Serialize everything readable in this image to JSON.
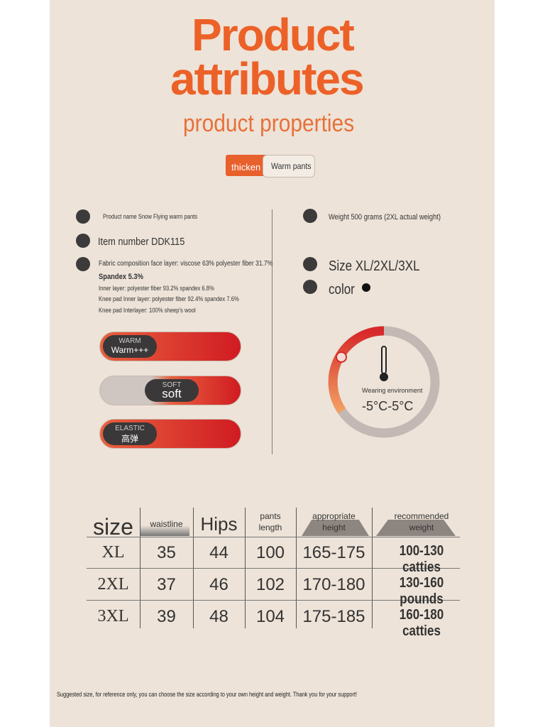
{
  "header": {
    "title_line1": "Product",
    "title_line2": "attributes",
    "subtitle": "product properties",
    "tags": [
      "thicken",
      "Warm pants"
    ]
  },
  "attributes_left": [
    "Product name Snow Flying warm pants",
    "Item number DDK115",
    "Fabric composition face layer: viscose 63% polyester fiber 31.7%",
    "Spandex 5.3%",
    "Inner layer: polyester fiber 93.2% spandex 6.8%",
    "Knee pad Inner layer: polyester fiber 92.4% spandex 7.6%",
    "Knee pad Interlayer: 100% sheep's wool"
  ],
  "sliders": [
    {
      "label": "WARM",
      "value": "Warm+++"
    },
    {
      "label": "SOFT",
      "value": "soft"
    },
    {
      "label": "ELASTIC",
      "value": "高弹"
    }
  ],
  "attributes_right": {
    "weight": "Weight 500 grams (2XL actual weight)",
    "size": "Size XL/2XL/3XL",
    "color": "color"
  },
  "gauge": {
    "label": "Wearing environment",
    "range": "-5°C-5°C"
  },
  "table": {
    "headers": [
      "size",
      "waistline",
      "Hips",
      "pants length",
      "appropriate height",
      "recommended weight"
    ],
    "rows": [
      [
        "XL",
        35,
        44,
        100,
        "165-175",
        "100-130 catties"
      ],
      [
        "2XL",
        37,
        46,
        102,
        "170-180",
        "130-160 pounds"
      ],
      [
        "3XL",
        39,
        48,
        104,
        "175-185",
        "160-180 catties"
      ]
    ]
  },
  "footnote": "Suggested size, for reference only, you can choose the size according to your own height and weight. Thank you for your support!"
}
